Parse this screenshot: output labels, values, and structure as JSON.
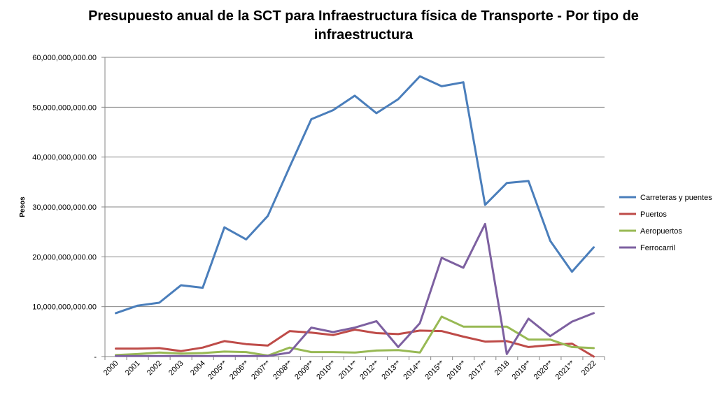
{
  "chart_data": {
    "type": "line",
    "title_lines": [
      "Presupuesto anual de la SCT para Infraestructura física de Transporte - Por tipo de",
      "infraestructura"
    ],
    "xlabel": "",
    "ylabel": "Pesos",
    "ylim": [
      0,
      60000000000
    ],
    "y_ticks": [
      0,
      10000000000,
      20000000000,
      30000000000,
      40000000000,
      50000000000,
      60000000000
    ],
    "y_tick_labels": [
      "-",
      "10,000,000,000.00",
      "20,000,000,000.00",
      "30,000,000,000.00",
      "40,000,000,000.00",
      "50,000,000,000.00",
      "60,000,000,000.00"
    ],
    "grid": true,
    "legend_position": "right",
    "categories": [
      "2000",
      "2001",
      "2002",
      "2003",
      "2004",
      "2005**",
      "2006**",
      "2007**",
      "2008**",
      "2009**",
      "2010**",
      "2011**",
      "2012**",
      "2013**",
      "2014**",
      "2015**",
      "2016**",
      "2017**",
      "2018",
      "2019**",
      "2020**",
      "2021**",
      "2022"
    ],
    "series": [
      {
        "name": "Carreteras y puentes",
        "color": "#4a7ebb",
        "values": [
          8700000000,
          10200000000,
          10800000000,
          14300000000,
          13800000000,
          25900000000,
          23500000000,
          28200000000,
          38000000000,
          47600000000,
          49400000000,
          52300000000,
          48800000000,
          51600000000,
          56200000000,
          54200000000,
          55000000000,
          30400000000,
          34800000000,
          35200000000,
          23200000000,
          17000000000,
          21900000000
        ]
      },
      {
        "name": "Puertos",
        "color": "#be4b48",
        "values": [
          1600000000,
          1600000000,
          1700000000,
          1100000000,
          1800000000,
          3100000000,
          2500000000,
          2200000000,
          5100000000,
          4800000000,
          4300000000,
          5400000000,
          4700000000,
          4500000000,
          5200000000,
          5100000000,
          4000000000,
          3000000000,
          3100000000,
          1900000000,
          2300000000,
          2600000000,
          0
        ]
      },
      {
        "name": "Aeropuertos",
        "color": "#98b954",
        "values": [
          300000000,
          500000000,
          800000000,
          600000000,
          700000000,
          1000000000,
          900000000,
          200000000,
          1800000000,
          900000000,
          900000000,
          800000000,
          1200000000,
          1300000000,
          800000000,
          8000000000,
          6000000000,
          6000000000,
          6000000000,
          3400000000,
          3400000000,
          1900000000,
          1700000000
        ]
      },
      {
        "name": "Ferrocarril",
        "color": "#7d60a0",
        "values": [
          100000000,
          100000000,
          100000000,
          100000000,
          100000000,
          100000000,
          100000000,
          100000000,
          800000000,
          5800000000,
          4900000000,
          5800000000,
          7100000000,
          1900000000,
          6700000000,
          19800000000,
          17800000000,
          26600000000,
          500000000,
          7600000000,
          4100000000,
          7000000000,
          8700000000
        ]
      }
    ]
  }
}
